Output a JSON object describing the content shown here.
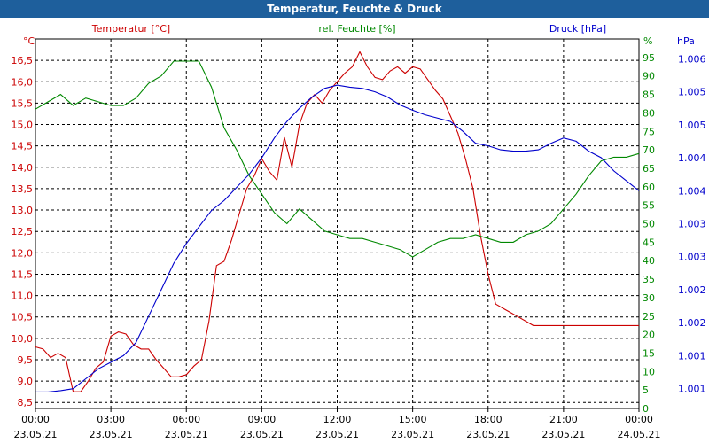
{
  "chart_data": {
    "type": "line",
    "title": "Temperatur, Feuchte & Druck",
    "colors": {
      "temperature": "#cc0000",
      "humidity": "#008800",
      "pressure": "#0000cc",
      "grid": "#000000"
    },
    "legend": {
      "temperature": "Temperatur [°C]",
      "humidity": "rel. Feuchte [%]",
      "pressure": "Druck [hPa]"
    },
    "axes": {
      "left": {
        "unit": "°C",
        "min": 8.36,
        "max": 17.0,
        "ticks": [
          "8,5",
          "9,0",
          "9,5",
          "10,0",
          "10,5",
          "11,0",
          "11,5",
          "12,0",
          "12,5",
          "13,0",
          "13,5",
          "14,0",
          "14,5",
          "15,0",
          "15,5",
          "16,0",
          "16,5"
        ]
      },
      "right": {
        "unit": "%",
        "min": 0,
        "max": 100,
        "ticks": [
          "0",
          "5",
          "10",
          "15",
          "20",
          "25",
          "30",
          "35",
          "40",
          "45",
          "50",
          "55",
          "60",
          "65",
          "70",
          "75",
          "80",
          "85",
          "90",
          "95"
        ]
      },
      "pressure": {
        "unit": "hPa",
        "min": 1000.7,
        "max": 1006.3,
        "ticks": [
          "1.001",
          "1.001",
          "1.002",
          "1.002",
          "1.003",
          "1.003",
          "1.004",
          "1.004",
          "1.005",
          "1.005",
          "1.006"
        ]
      },
      "x": {
        "ticks": [
          {
            "time": "00:00",
            "date": "23.05.21"
          },
          {
            "time": "03:00",
            "date": "23.05.21"
          },
          {
            "time": "06:00",
            "date": "23.05.21"
          },
          {
            "time": "09:00",
            "date": "23.05.21"
          },
          {
            "time": "12:00",
            "date": "23.05.21"
          },
          {
            "time": "15:00",
            "date": "23.05.21"
          },
          {
            "time": "18:00",
            "date": "23.05.21"
          },
          {
            "time": "21:00",
            "date": "23.05.21"
          },
          {
            "time": "00:00",
            "date": "24.05.21"
          }
        ]
      }
    },
    "series": [
      {
        "name": "Temperatur",
        "axis": "left",
        "x": [
          0,
          0.3,
          0.6,
          0.9,
          1.2,
          1.5,
          1.8,
          2.1,
          2.4,
          2.7,
          3.0,
          3.3,
          3.6,
          3.9,
          4.2,
          4.5,
          4.8,
          5.1,
          5.4,
          5.7,
          6.0,
          6.3,
          6.6,
          6.9,
          7.2,
          7.5,
          7.8,
          8.1,
          8.4,
          8.7,
          9.0,
          9.3,
          9.6,
          9.9,
          10.2,
          10.5,
          10.8,
          11.1,
          11.4,
          11.7,
          12.0,
          12.3,
          12.6,
          12.9,
          13.2,
          13.5,
          13.8,
          14.1,
          14.4,
          14.7,
          15.0,
          15.3,
          15.6,
          15.9,
          16.2,
          16.5,
          16.8,
          17.1,
          17.4,
          17.7,
          18.0,
          18.3,
          18.6,
          18.9,
          19.2,
          19.5,
          19.8,
          20.1,
          20.4,
          20.7,
          21.0,
          21.3,
          21.6,
          21.9,
          22.2,
          22.5,
          22.8,
          23.1,
          23.4,
          23.7,
          24.0
        ],
        "values": [
          9.8,
          9.75,
          9.55,
          9.65,
          9.55,
          8.75,
          8.75,
          9.0,
          9.3,
          9.45,
          10.05,
          10.15,
          10.1,
          9.85,
          9.75,
          9.75,
          9.5,
          9.3,
          9.1,
          9.1,
          9.15,
          9.35,
          9.5,
          10.4,
          11.7,
          11.8,
          12.3,
          12.9,
          13.5,
          13.8,
          14.2,
          13.9,
          13.7,
          14.7,
          14.0,
          15.0,
          15.5,
          15.7,
          15.5,
          15.8,
          16.0,
          16.2,
          16.35,
          16.7,
          16.35,
          16.1,
          16.05,
          16.25,
          16.35,
          16.2,
          16.35,
          16.3,
          16.05,
          15.8,
          15.6,
          15.2,
          14.8,
          14.2,
          13.5,
          12.4,
          11.5,
          10.8,
          10.7,
          10.6,
          10.5,
          10.4,
          10.3,
          10.3,
          10.3,
          10.3,
          10.3,
          10.3,
          10.3,
          10.3,
          10.3,
          10.3,
          10.3,
          10.3,
          10.3,
          10.3,
          10.3
        ]
      },
      {
        "name": "rel. Feuchte",
        "axis": "right",
        "x": [
          0,
          0.5,
          1.0,
          1.5,
          2.0,
          2.5,
          3.0,
          3.5,
          4.0,
          4.5,
          5.0,
          5.5,
          6.0,
          6.5,
          7.0,
          7.5,
          8.0,
          8.5,
          9.0,
          9.5,
          10.0,
          10.5,
          11.0,
          11.5,
          12.0,
          12.5,
          13.0,
          13.5,
          14.0,
          14.5,
          15.0,
          15.5,
          16.0,
          16.5,
          17.0,
          17.5,
          18.0,
          18.5,
          19.0,
          19.5,
          20.0,
          20.5,
          21.0,
          21.5,
          22.0,
          22.5,
          23.0,
          23.5,
          24.0
        ],
        "values": [
          81,
          83,
          85,
          82,
          84,
          83,
          82,
          82,
          84,
          88,
          90,
          94,
          94,
          94,
          87,
          76,
          70,
          63,
          58,
          53,
          50,
          54,
          51,
          48,
          47,
          46,
          46,
          45,
          44,
          43,
          41,
          43,
          45,
          46,
          46,
          47,
          46,
          45,
          45,
          47,
          48,
          50,
          54,
          58,
          63,
          67,
          68,
          68,
          69
        ]
      },
      {
        "name": "Druck",
        "axis": "pressure",
        "x": [
          0,
          0.5,
          1.0,
          1.5,
          2.0,
          2.5,
          3.0,
          3.5,
          4.0,
          4.5,
          5.0,
          5.5,
          6.0,
          6.5,
          7.0,
          7.5,
          8.0,
          8.5,
          9.0,
          9.5,
          10.0,
          10.5,
          11.0,
          11.5,
          12.0,
          12.5,
          13.0,
          13.5,
          14.0,
          14.5,
          15.0,
          15.5,
          16.0,
          16.5,
          17.0,
          17.5,
          18.0,
          18.5,
          19.0,
          19.5,
          20.0,
          20.5,
          21.0,
          21.5,
          22.0,
          22.5,
          23.0,
          23.5,
          24.0
        ],
        "values": [
          1000.95,
          1000.95,
          1000.97,
          1001.0,
          1001.15,
          1001.3,
          1001.4,
          1001.5,
          1001.7,
          1002.1,
          1002.5,
          1002.9,
          1003.2,
          1003.45,
          1003.7,
          1003.85,
          1004.05,
          1004.25,
          1004.5,
          1004.8,
          1005.05,
          1005.25,
          1005.42,
          1005.55,
          1005.6,
          1005.57,
          1005.55,
          1005.5,
          1005.42,
          1005.3,
          1005.22,
          1005.15,
          1005.1,
          1005.05,
          1004.9,
          1004.72,
          1004.68,
          1004.62,
          1004.6,
          1004.6,
          1004.62,
          1004.72,
          1004.8,
          1004.75,
          1004.6,
          1004.5,
          1004.3,
          1004.15,
          1004.0
        ]
      }
    ]
  }
}
